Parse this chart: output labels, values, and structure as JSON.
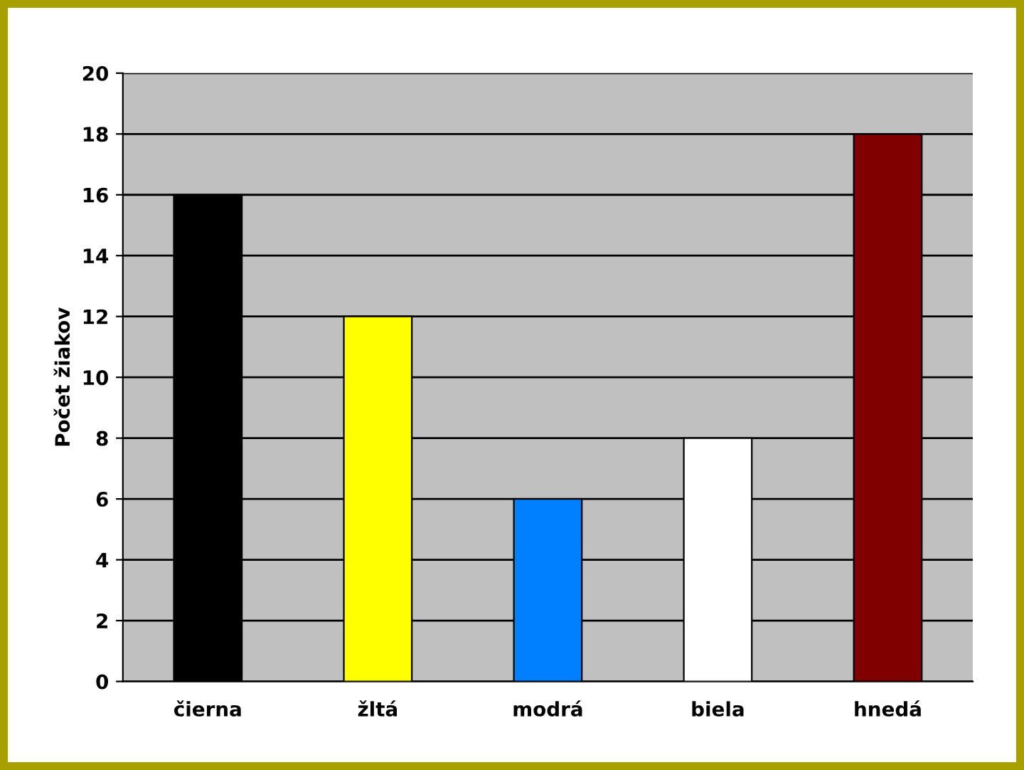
{
  "chart_data": {
    "type": "bar",
    "ylabel": "Počet žiakov",
    "categories": [
      "čierna",
      "žltá",
      "modrá",
      "biela",
      "hnedá"
    ],
    "values": [
      16,
      12,
      6,
      8,
      18
    ],
    "colors": [
      "#000000",
      "#ffff00",
      "#0080ff",
      "#ffffff",
      "#800000"
    ],
    "ylim": [
      0,
      20
    ],
    "yticks": [
      0,
      2,
      4,
      6,
      8,
      10,
      12,
      14,
      16,
      18,
      20
    ],
    "grid": "y",
    "legend": false
  }
}
